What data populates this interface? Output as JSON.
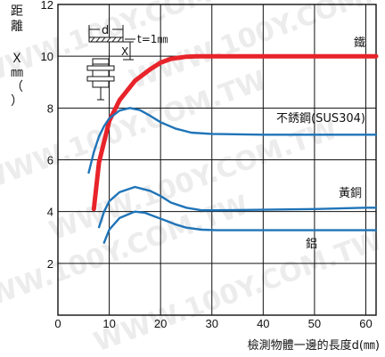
{
  "chart_data": {
    "type": "line",
    "title": "",
    "xlabel": "檢測物體一邊的長度d(㎜)",
    "ylabel_chars": [
      "距",
      "離",
      "Ｘ",
      "㎜",
      "（",
      "）"
    ],
    "xlim": [
      0,
      62
    ],
    "ylim": [
      0,
      12
    ],
    "xticks": [
      0,
      10,
      20,
      30,
      40,
      50,
      60
    ],
    "yticks": [
      2,
      4,
      6,
      8,
      10,
      12
    ],
    "grid": true,
    "series": [
      {
        "name": "鐵",
        "color": "#e8232a",
        "x": [
          7,
          8,
          10,
          12,
          15,
          18,
          20,
          22,
          25,
          27,
          30,
          40,
          50,
          60,
          62
        ],
        "y": [
          4.1,
          5.9,
          7.5,
          8.3,
          9.05,
          9.5,
          9.75,
          9.9,
          9.98,
          10.0,
          10.0,
          10.0,
          10.0,
          10.0,
          10.0
        ]
      },
      {
        "name": "不銹鋼(SUS304)",
        "color": "#1f74b8",
        "x": [
          6,
          7,
          8,
          9,
          10,
          12,
          14,
          16,
          18,
          20,
          23,
          26,
          30,
          40,
          50,
          60,
          62
        ],
        "y": [
          5.5,
          6.3,
          6.9,
          7.3,
          7.6,
          7.9,
          8.0,
          7.92,
          7.7,
          7.45,
          7.2,
          7.05,
          7.0,
          6.97,
          6.97,
          6.97,
          6.97
        ]
      },
      {
        "name": "黃銅",
        "color": "#1f74b8",
        "x": [
          8,
          9,
          10,
          12,
          15,
          18,
          20,
          22,
          25,
          28,
          30,
          35,
          40,
          50,
          60,
          62
        ],
        "y": [
          3.4,
          4.0,
          4.4,
          4.75,
          4.95,
          4.8,
          4.6,
          4.35,
          4.15,
          4.05,
          4.05,
          4.06,
          4.07,
          4.1,
          4.15,
          4.15
        ]
      },
      {
        "name": "鋁",
        "color": "#1f74b8",
        "x": [
          9,
          10,
          12,
          15,
          17,
          19,
          21,
          23,
          25,
          28,
          31,
          35,
          40,
          50,
          60,
          62
        ],
        "y": [
          2.8,
          3.3,
          3.75,
          4.0,
          3.95,
          3.8,
          3.65,
          3.5,
          3.38,
          3.3,
          3.28,
          3.28,
          3.28,
          3.28,
          3.28,
          3.28
        ]
      }
    ],
    "annotations": {
      "thickness": "t=1㎜",
      "dimension_d": "d",
      "dimension_x": "X"
    }
  },
  "watermark": [
    "WWW.100Y.COM.TW",
    "WWW.100Y.COM.TW",
    "WWW.100Y.COM.TW",
    "WWW.100Y.COM.TW",
    "WWW.100Y.COM.TW",
    "WWW.100Y.COM.TW"
  ]
}
